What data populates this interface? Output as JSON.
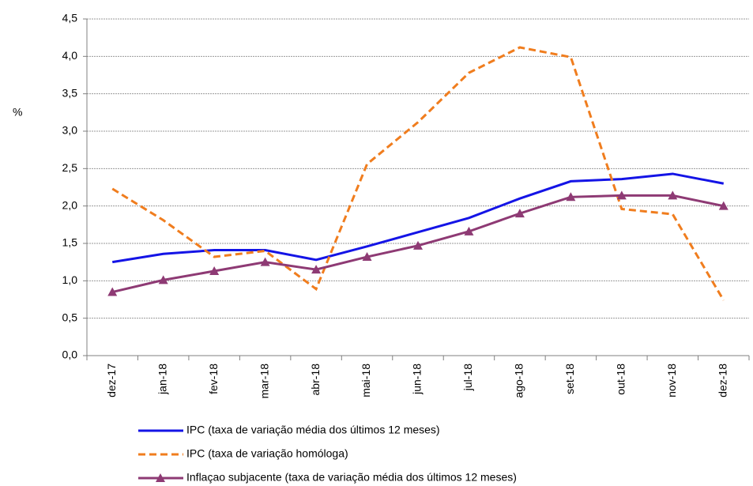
{
  "chart_data": {
    "type": "line",
    "ylabel": "%",
    "categories": [
      "dez-17",
      "jan-18",
      "fev-18",
      "mar-18",
      "abr-18",
      "mai-18",
      "jun-18",
      "jul-18",
      "ago-18",
      "set-18",
      "out-18",
      "nov-18",
      "dez-18"
    ],
    "series": [
      {
        "name": "IPC (taxa de variação média dos últimos 12 meses)",
        "color": "#1414e6",
        "style": "solid",
        "marker": "none",
        "values": [
          1.25,
          1.36,
          1.41,
          1.41,
          1.28,
          1.46,
          1.65,
          1.84,
          2.1,
          2.33,
          2.36,
          2.43,
          2.3
        ]
      },
      {
        "name": "IPC (taxa de variação homóloga)",
        "color": "#f07d1e",
        "style": "dashed",
        "marker": "none",
        "values": [
          2.23,
          1.81,
          1.32,
          1.4,
          0.89,
          2.56,
          3.12,
          3.78,
          4.12,
          3.99,
          1.96,
          1.89,
          0.74
        ]
      },
      {
        "name": "Inflaçao subjacente (taxa de variação média dos últimos 12 meses)",
        "color": "#8e3a74",
        "style": "solid",
        "marker": "triangle",
        "values": [
          0.85,
          1.01,
          1.13,
          1.25,
          1.15,
          1.32,
          1.47,
          1.66,
          1.9,
          2.12,
          2.14,
          2.14,
          2.0
        ]
      }
    ],
    "ylim": [
      0,
      4.5
    ],
    "yticks": [
      {
        "value": 0,
        "label": "0,0"
      },
      {
        "value": 0.5,
        "label": "0,5"
      },
      {
        "value": 1,
        "label": "1,0"
      },
      {
        "value": 1.5,
        "label": "1,5"
      },
      {
        "value": 2,
        "label": "2,0"
      },
      {
        "value": 2.5,
        "label": "2,5"
      },
      {
        "value": 3,
        "label": "3,0"
      },
      {
        "value": 3.5,
        "label": "3,5"
      },
      {
        "value": 4,
        "label": "4,0"
      },
      {
        "value": 4.5,
        "label": "4,5"
      }
    ],
    "grid": true
  }
}
